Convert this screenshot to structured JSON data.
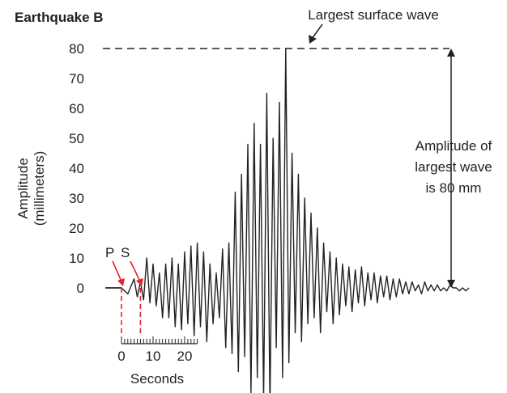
{
  "chart_data": {
    "type": "line",
    "title": "Earthquake B",
    "ylabel_line1": "Amplitude",
    "ylabel_line2": "(millimeters)",
    "xlabel": "Seconds",
    "ylim": [
      -30,
      80
    ],
    "yticks": [
      "80",
      "70",
      "60",
      "50",
      "40",
      "30",
      "20",
      "10",
      "0"
    ],
    "xticks": [
      "0",
      "10",
      "20"
    ],
    "p_label": "P",
    "s_label": "S",
    "p_arrival_seconds": 0,
    "s_arrival_seconds": 6,
    "peak_label": "Largest surface wave",
    "amplitude_note": [
      "Amplitude of",
      "largest wave",
      "is 80 mm"
    ],
    "peak_amplitude_mm": 80,
    "colors": {
      "trace": "#222222",
      "marker": "#e0262b"
    },
    "x_seconds": [
      -5,
      0,
      2,
      4,
      5,
      6,
      7,
      8,
      9,
      10,
      11,
      12,
      13,
      14,
      15,
      16,
      17,
      18,
      19,
      20,
      21,
      22,
      23,
      24,
      25,
      26,
      27,
      28,
      29,
      30,
      31,
      32,
      33,
      34,
      35,
      36,
      37,
      38,
      39,
      40,
      41,
      42,
      43,
      44,
      45,
      46,
      47,
      48,
      49,
      50,
      51,
      52,
      53,
      54,
      55,
      56,
      57,
      58,
      59,
      60,
      61,
      62,
      63,
      64,
      65,
      66,
      67,
      68,
      69,
      70,
      71,
      72,
      73,
      74,
      75,
      76,
      77,
      78,
      79,
      80,
      81,
      82,
      83,
      84,
      85,
      86,
      87,
      88,
      89,
      90,
      91,
      92,
      93,
      94,
      95,
      96,
      97,
      98,
      99,
      100,
      101,
      102,
      103,
      104,
      105,
      106,
      107,
      108,
      109,
      110
    ],
    "y_mm": [
      0,
      0,
      -2,
      3,
      -3,
      2,
      -4,
      10,
      -5,
      8,
      -6,
      5,
      -10,
      8,
      -10,
      10,
      -13,
      8,
      -14,
      12,
      -12,
      14,
      -16,
      15,
      -13,
      12,
      -18,
      8,
      -12,
      5,
      -10,
      13,
      -20,
      15,
      -22,
      32,
      -28,
      38,
      -23,
      48,
      -35,
      55,
      -30,
      48,
      -37,
      65,
      -40,
      50,
      -20,
      62,
      -30,
      80,
      -25,
      45,
      -15,
      38,
      -18,
      30,
      -12,
      25,
      -10,
      20,
      -15,
      15,
      -8,
      12,
      -12,
      10,
      -9,
      8,
      -6,
      7,
      -8,
      6,
      -5,
      7,
      -6,
      5,
      -4,
      5,
      -5,
      4,
      -3,
      4,
      -4,
      3,
      -3,
      3,
      -2,
      2,
      -2,
      2,
      -1,
      1,
      -2,
      2,
      -1,
      1,
      -1,
      1,
      -1,
      0,
      -1,
      1,
      0,
      0,
      -1,
      0,
      -1,
      0
    ]
  }
}
